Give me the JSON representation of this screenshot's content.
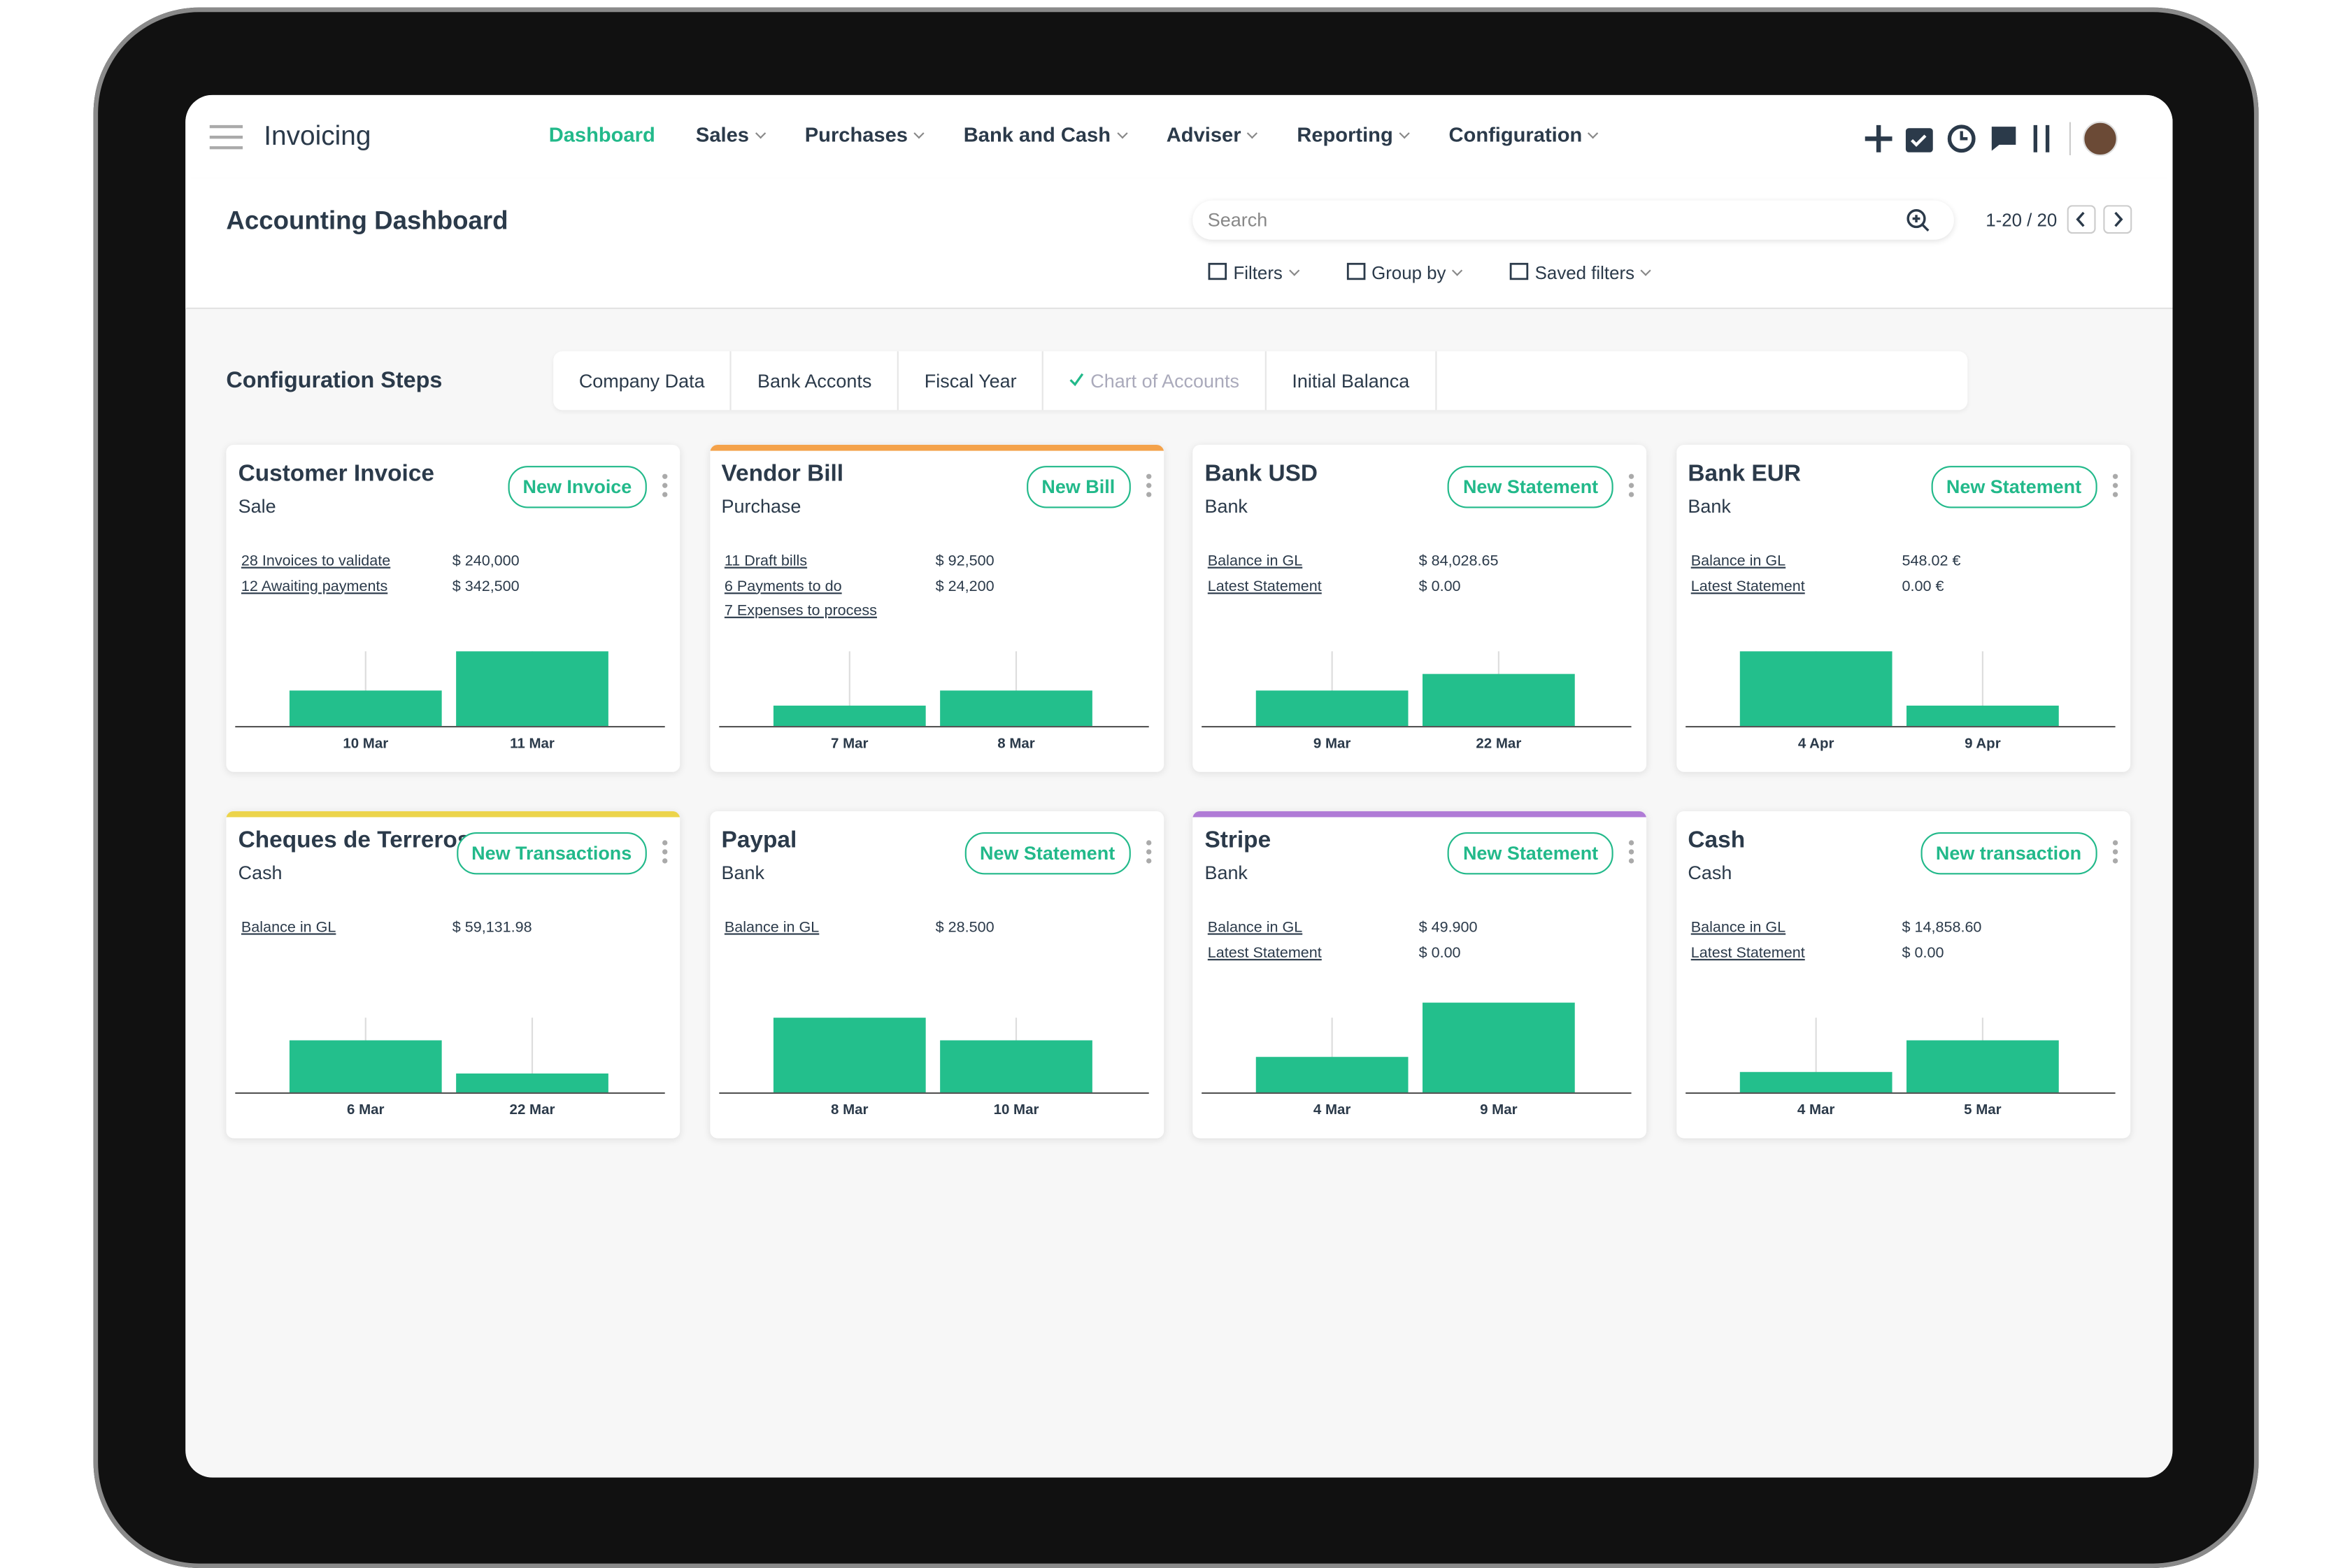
{
  "app": {
    "name": "Invoicing",
    "menu": [
      "Dashboard",
      "Sales",
      "Purchases",
      "Bank and Cash",
      "Adviser",
      "Reporting",
      "Configuration"
    ]
  },
  "header": {
    "title": "Accounting Dashboard",
    "search_placeholder": "Search",
    "pager": "1-20 / 20",
    "filters": [
      "Filters",
      "Group by",
      "Saved filters"
    ]
  },
  "steps": {
    "title": "Configuration Steps",
    "items": [
      {
        "label": "Company Data"
      },
      {
        "label": "Bank Acconts"
      },
      {
        "label": "Fiscal Year"
      },
      {
        "label": "Chart of Accounts",
        "done": true
      },
      {
        "label": "Initial Balanca"
      }
    ]
  },
  "cards": [
    {
      "title": "Customer Invoice",
      "subtitle": "Sale",
      "button": "New Invoice",
      "lines": [
        [
          "28 Invoices to validate",
          "$ 240,000"
        ],
        [
          "12 Awaiting payments",
          "$ 342,500"
        ]
      ],
      "bars": [
        {
          "label": "10 Mar",
          "value": 24
        },
        {
          "label": "11 Mar",
          "value": 50
        }
      ]
    },
    {
      "title": "Vendor Bill",
      "subtitle": "Purchase",
      "button": "New Bill",
      "accent": "#f4a24a",
      "lines": [
        [
          "11 Draft bills",
          "$ 92,500"
        ],
        [
          "6 Payments to do",
          "$ 24,200"
        ],
        [
          "7 Expenses to process"
        ]
      ],
      "bars": [
        {
          "label": "7 Mar",
          "value": 14
        },
        {
          "label": "8 Mar",
          "value": 24
        }
      ]
    },
    {
      "title": "Bank USD",
      "subtitle": "Bank",
      "button": "New Statement",
      "lines": [
        [
          "Balance in GL",
          "$ 84,028.65"
        ],
        [
          "Latest Statement",
          "$ 0.00"
        ]
      ],
      "bars": [
        {
          "label": "9 Mar",
          "value": 24
        },
        {
          "label": "22 Mar",
          "value": 35
        }
      ]
    },
    {
      "title": "Bank EUR",
      "subtitle": "Bank",
      "button": "New Statement",
      "lines": [
        [
          "Balance in GL",
          "548.02 €"
        ],
        [
          "Latest Statement",
          "0.00 €"
        ]
      ],
      "bars": [
        {
          "label": "4 Apr",
          "value": 50
        },
        {
          "label": "9 Apr",
          "value": 14
        }
      ]
    },
    {
      "title": "Cheques de Terreros",
      "subtitle": "Cash",
      "button": "New Transactions",
      "accent": "#ecd44b",
      "lines": [
        [
          "Balance in GL",
          "$ 59,131.98"
        ]
      ],
      "bars": [
        {
          "label": "6 Mar",
          "value": 35
        },
        {
          "label": "22 Mar",
          "value": 13
        }
      ]
    },
    {
      "title": "Paypal",
      "subtitle": "Bank",
      "button": "New Statement",
      "lines": [
        [
          "Balance in GL",
          "$ 28.500"
        ]
      ],
      "bars": [
        {
          "label": "8 Mar",
          "value": 50
        },
        {
          "label": "10 Mar",
          "value": 35
        }
      ]
    },
    {
      "title": "Stripe",
      "subtitle": "Bank",
      "button": "New Statement",
      "accent": "#b07bd6",
      "lines": [
        [
          "Balance in GL",
          "$ 49.900"
        ],
        [
          "Latest Statement",
          "$ 0.00"
        ]
      ],
      "bars": [
        {
          "label": "4 Mar",
          "value": 24
        },
        {
          "label": "9 Mar",
          "value": 60
        }
      ]
    },
    {
      "title": "Cash",
      "subtitle": "Cash",
      "button": "New transaction",
      "lines": [
        [
          "Balance in GL",
          "$ 14,858.60"
        ],
        [
          "Latest Statement",
          "$ 0.00"
        ]
      ],
      "bars": [
        {
          "label": "4 Mar",
          "value": 14
        },
        {
          "label": "5 Mar",
          "value": 35
        }
      ]
    }
  ]
}
